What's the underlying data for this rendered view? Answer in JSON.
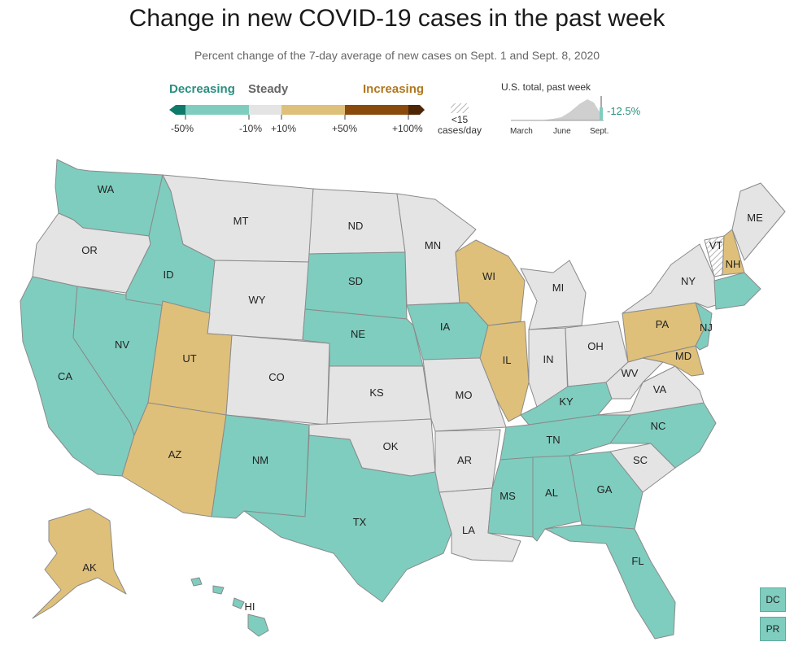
{
  "title": "Change in new COVID-19 cases in the past week",
  "subtitle": "Percent change of the 7-day average of new cases on Sept. 1 and Sept. 8, 2020",
  "legend": {
    "decreasing": "Decreasing",
    "steady": "Steady",
    "increasing": "Increasing",
    "ticks": [
      "-50%",
      "-10%",
      "+10%",
      "+50%",
      "+100%"
    ],
    "low_cases_line1": "<15",
    "low_cases_line2": "cases/day",
    "colors": {
      "strong_decrease": "#0e7b6a",
      "decrease": "#7fcdbf",
      "steady": "#e4e4e4",
      "increase": "#dfc07a",
      "strong_increase": "#8a4a0c",
      "very_strong_increase": "#4d2605"
    }
  },
  "us_total": {
    "label": "U.S. total, past week",
    "value": "-12.5%",
    "months": [
      "March",
      "June",
      "Sept."
    ]
  },
  "states": {
    "WA": "WA",
    "OR": "OR",
    "CA": "CA",
    "NV": "NV",
    "ID": "ID",
    "MT": "MT",
    "WY": "WY",
    "UT": "UT",
    "AZ": "AZ",
    "CO": "CO",
    "NM": "NM",
    "ND": "ND",
    "SD": "SD",
    "NE": "NE",
    "KS": "KS",
    "OK": "OK",
    "TX": "TX",
    "MN": "MN",
    "IA": "IA",
    "MO": "MO",
    "AR": "AR",
    "LA": "LA",
    "WI": "WI",
    "IL": "IL",
    "MI": "MI",
    "IN": "IN",
    "OH": "OH",
    "KY": "KY",
    "TN": "TN",
    "MS": "MS",
    "AL": "AL",
    "GA": "GA",
    "FL": "FL",
    "SC": "SC",
    "NC": "NC",
    "VA": "VA",
    "WV": "WV",
    "PA": "PA",
    "NY": "NY",
    "NJ": "NJ",
    "MD": "MD",
    "VT": "VT",
    "NH": "NH",
    "ME": "ME",
    "AK": "AK",
    "HI": "HI",
    "DC": "DC",
    "PR": "PR"
  }
}
